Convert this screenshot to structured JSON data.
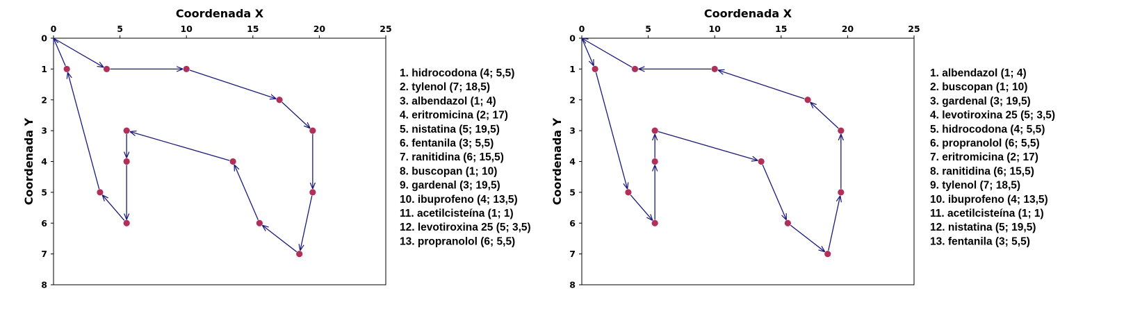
{
  "chart_data": [
    {
      "type": "line",
      "xlabel": "Coordenada X",
      "ylabel": "Coordenada Y",
      "xlim": [
        0,
        25
      ],
      "ylim": [
        0,
        8
      ],
      "y_inverted": true,
      "x_axis_position": "top",
      "grid": false,
      "legend_position": "right",
      "xticks": [
        "0",
        "5",
        "10",
        "15",
        "20",
        "25"
      ],
      "yticks": [
        "0",
        "1",
        "2",
        "3",
        "4",
        "5",
        "6",
        "7",
        "8"
      ],
      "points": [
        {
          "x": 1,
          "y": 1
        },
        {
          "x": 4,
          "y": 1
        },
        {
          "x": 10,
          "y": 1
        },
        {
          "x": 17,
          "y": 2
        },
        {
          "x": 19.5,
          "y": 3
        },
        {
          "x": 19.5,
          "y": 5
        },
        {
          "x": 18.5,
          "y": 7
        },
        {
          "x": 15.5,
          "y": 6
        },
        {
          "x": 13.5,
          "y": 4
        },
        {
          "x": 5.5,
          "y": 3
        },
        {
          "x": 5.5,
          "y": 4
        },
        {
          "x": 5.5,
          "y": 6
        },
        {
          "x": 3.5,
          "y": 5
        }
      ],
      "route": [
        {
          "x": 0,
          "y": 0
        },
        {
          "x": 4,
          "y": 1
        },
        {
          "x": 10,
          "y": 1
        },
        {
          "x": 17,
          "y": 2
        },
        {
          "x": 19.5,
          "y": 3
        },
        {
          "x": 19.5,
          "y": 5
        },
        {
          "x": 18.5,
          "y": 7
        },
        {
          "x": 15.5,
          "y": 6
        },
        {
          "x": 13.5,
          "y": 4
        },
        {
          "x": 5.5,
          "y": 3
        },
        {
          "x": 5.5,
          "y": 4
        },
        {
          "x": 5.5,
          "y": 6
        },
        {
          "x": 3.5,
          "y": 5
        },
        {
          "x": 1,
          "y": 1
        },
        {
          "x": 0,
          "y": 0
        }
      ],
      "legend": [
        "1. hidrocodona (4; 5,5)",
        "2. tylenol (7; 18,5)",
        "3. albendazol (1; 4)",
        "4. eritromicina (2; 17)",
        "5. nistatina (5; 19,5)",
        "6. fentanila (3; 5,5)",
        "7. ranitidina (6; 15,5)",
        "8. buscopan (1; 10)",
        "9. gardenal (3; 19,5)",
        "10. ibuprofeno (4; 13,5)",
        "11. acetilcisteína (1; 1)",
        "12. levotiroxina 25 (5; 3,5)",
        "13. propranolol (6; 5,5)"
      ]
    },
    {
      "type": "line",
      "xlabel": "Coordenada X",
      "ylabel": "Coordenada Y",
      "xlim": [
        0,
        25
      ],
      "ylim": [
        0,
        8
      ],
      "y_inverted": true,
      "x_axis_position": "top",
      "grid": false,
      "legend_position": "right",
      "xticks": [
        "0",
        "5",
        "10",
        "15",
        "20",
        "25"
      ],
      "yticks": [
        "0",
        "1",
        "2",
        "3",
        "4",
        "5",
        "6",
        "7",
        "8"
      ],
      "points": [
        {
          "x": 1,
          "y": 1
        },
        {
          "x": 4,
          "y": 1
        },
        {
          "x": 10,
          "y": 1
        },
        {
          "x": 17,
          "y": 2
        },
        {
          "x": 19.5,
          "y": 3
        },
        {
          "x": 19.5,
          "y": 5
        },
        {
          "x": 18.5,
          "y": 7
        },
        {
          "x": 15.5,
          "y": 6
        },
        {
          "x": 13.5,
          "y": 4
        },
        {
          "x": 5.5,
          "y": 3
        },
        {
          "x": 5.5,
          "y": 4
        },
        {
          "x": 5.5,
          "y": 6
        },
        {
          "x": 3.5,
          "y": 5
        }
      ],
      "route": [
        {
          "x": 0,
          "y": 0
        },
        {
          "x": 1,
          "y": 1
        },
        {
          "x": 3.5,
          "y": 5
        },
        {
          "x": 5.5,
          "y": 6
        },
        {
          "x": 5.5,
          "y": 4
        },
        {
          "x": 5.5,
          "y": 3
        },
        {
          "x": 13.5,
          "y": 4
        },
        {
          "x": 15.5,
          "y": 6
        },
        {
          "x": 18.5,
          "y": 7
        },
        {
          "x": 19.5,
          "y": 5
        },
        {
          "x": 19.5,
          "y": 3
        },
        {
          "x": 17,
          "y": 2
        },
        {
          "x": 10,
          "y": 1
        },
        {
          "x": 4,
          "y": 1
        },
        {
          "x": 0,
          "y": 0
        }
      ],
      "legend": [
        "1. albendazol (1; 4)",
        "2. buscopan (1; 10)",
        "3. gardenal (3; 19,5)",
        "4. levotiroxina 25 (5; 3,5)",
        "5. hidrocodona (4; 5,5)",
        "6. propranolol (6; 5,5)",
        "7. eritromicina (2; 17)",
        "8. ranitidina (6; 15,5)",
        "9. tylenol (7; 18,5)",
        "10. ibuprofeno (4; 13,5)",
        "11. acetilcisteína (1; 1)",
        "12. nistatina (5; 19,5)",
        "13. fentanila (3; 5,5)"
      ]
    }
  ],
  "colors": {
    "line": "#1a1a7a",
    "point": "#b0305a",
    "axis": "#000000"
  }
}
